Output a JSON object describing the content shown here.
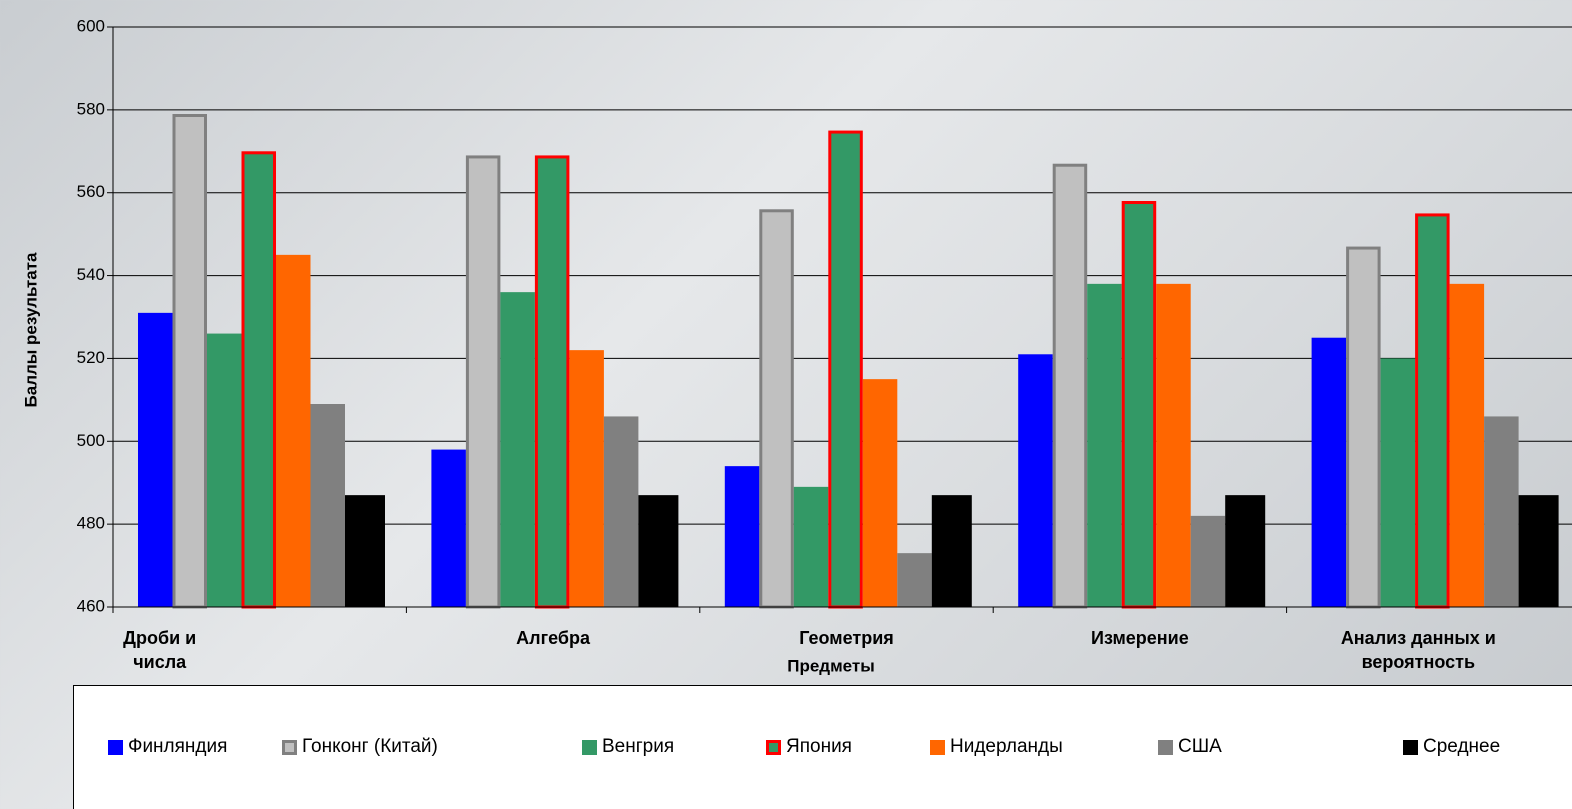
{
  "chart_data": {
    "type": "bar",
    "ylabel": "Баллы результата",
    "xlabel": "Предметы",
    "categories": [
      "Дроби и числа",
      "Алгебра",
      "Геометрия",
      "Измерение",
      "Анализ данных и вероятность"
    ],
    "series": [
      {
        "name": "Финляндия",
        "color": "#0000ff",
        "values": [
          531,
          498,
          494,
          521,
          525
        ]
      },
      {
        "name": "Гонконг (Китай)",
        "color": "#c0c0c0",
        "edgecolor": "#808080",
        "values": [
          579,
          569,
          556,
          567,
          547
        ]
      },
      {
        "name": "Венгрия",
        "color": "#339966",
        "values": [
          526,
          536,
          489,
          538,
          520
        ]
      },
      {
        "name": "Япония",
        "color": "#339966",
        "edgecolor": "#ff0000",
        "values": [
          570,
          569,
          575,
          558,
          555
        ]
      },
      {
        "name": "Нидерланды",
        "color": "#ff6600",
        "values": [
          545,
          522,
          515,
          538,
          538
        ]
      },
      {
        "name": "США",
        "color": "#808080",
        "values": [
          509,
          506,
          473,
          482,
          506
        ]
      },
      {
        "name": "Среднее",
        "color": "#000000",
        "values": [
          487,
          487,
          487,
          487,
          487
        ]
      }
    ],
    "ylim": [
      460,
      600
    ],
    "yticks": [
      460,
      480,
      500,
      520,
      540,
      560,
      580,
      600
    ],
    "grid": true,
    "legend": "bottom"
  }
}
